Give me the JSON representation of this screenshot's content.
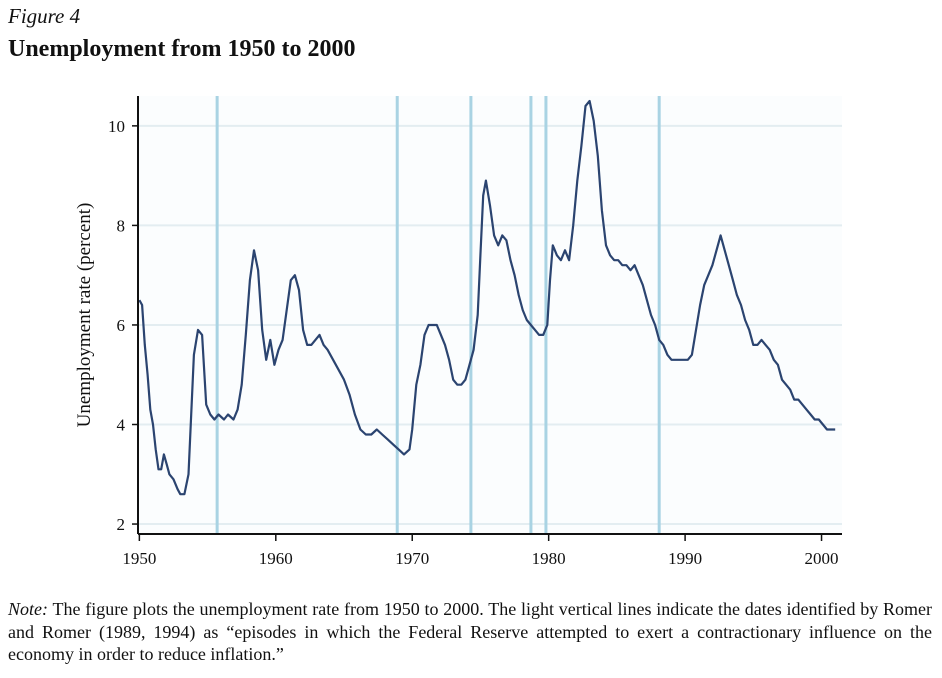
{
  "figure_label": "Figure 4",
  "figure_title": "Unemployment from 1950 to 2000",
  "note": {
    "label": "Note:",
    "text": " The figure plots the unemployment rate from 1950 to 2000. The light vertical lines indicate the dates identified by Romer and Romer (1989, 1994) as “episodes in which the Federal Reserve attempted to exert a contractionary influence on the economy in order to reduce inflation.”"
  },
  "colors": {
    "series": "#2b4470",
    "episode_line": "#a9d3e3",
    "grid": "#e3edf1",
    "plot_background": "#fbfdfe",
    "axis": "#111111"
  },
  "chart_data": {
    "type": "line",
    "title": "",
    "xlabel": "",
    "ylabel": "Unemployment rate (percent)",
    "xlim": [
      1949.9,
      2001.5
    ],
    "ylim": [
      1.8,
      10.6
    ],
    "x_ticks": [
      1950,
      1960,
      1970,
      1980,
      1990,
      2000
    ],
    "y_ticks": [
      2,
      4,
      6,
      8,
      10
    ],
    "grid": "horizontal",
    "episodes": [
      1955.7,
      1968.9,
      1974.3,
      1978.7,
      1979.8,
      1988.1
    ],
    "series": [
      {
        "x": [
          1950.0,
          1950.2,
          1950.4,
          1950.6,
          1950.8,
          1951.0,
          1951.2,
          1951.4,
          1951.6,
          1951.8,
          1952.0,
          1952.2,
          1952.5,
          1952.8,
          1953.0,
          1953.3,
          1953.6,
          1953.8,
          1954.0,
          1954.3,
          1954.6,
          1954.9,
          1955.2,
          1955.5,
          1955.8,
          1956.2,
          1956.5,
          1956.9,
          1957.2,
          1957.5,
          1957.8,
          1958.1,
          1958.4,
          1958.7,
          1959.0,
          1959.3,
          1959.6,
          1959.9,
          1960.2,
          1960.5,
          1960.8,
          1961.1,
          1961.4,
          1961.7,
          1962.0,
          1962.3,
          1962.6,
          1962.9,
          1963.2,
          1963.5,
          1963.8,
          1964.2,
          1964.6,
          1965.0,
          1965.4,
          1965.8,
          1966.2,
          1966.6,
          1967.0,
          1967.4,
          1967.8,
          1968.2,
          1968.6,
          1969.0,
          1969.4,
          1969.8,
          1970.0,
          1970.3,
          1970.6,
          1970.9,
          1971.2,
          1971.5,
          1971.8,
          1972.1,
          1972.4,
          1972.7,
          1973.0,
          1973.3,
          1973.6,
          1973.9,
          1974.2,
          1974.5,
          1974.8,
          1975.0,
          1975.2,
          1975.4,
          1975.7,
          1976.0,
          1976.3,
          1976.6,
          1976.9,
          1977.2,
          1977.5,
          1977.8,
          1978.1,
          1978.4,
          1978.7,
          1979.0,
          1979.3,
          1979.6,
          1979.9,
          1980.1,
          1980.3,
          1980.6,
          1980.9,
          1981.2,
          1981.5,
          1981.8,
          1982.1,
          1982.4,
          1982.7,
          1983.0,
          1983.3,
          1983.6,
          1983.9,
          1984.2,
          1984.5,
          1984.8,
          1985.1,
          1985.4,
          1985.7,
          1986.0,
          1986.3,
          1986.6,
          1986.9,
          1987.2,
          1987.5,
          1987.8,
          1988.1,
          1988.4,
          1988.7,
          1989.0,
          1989.3,
          1989.6,
          1989.9,
          1990.2,
          1990.5,
          1990.8,
          1991.1,
          1991.4,
          1991.7,
          1992.0,
          1992.3,
          1992.6,
          1992.9,
          1993.2,
          1993.5,
          1993.8,
          1994.1,
          1994.4,
          1994.7,
          1995.0,
          1995.3,
          1995.6,
          1995.9,
          1996.2,
          1996.5,
          1996.8,
          1997.1,
          1997.4,
          1997.7,
          1998.0,
          1998.3,
          1998.6,
          1998.9,
          1999.2,
          1999.5,
          1999.8,
          2000.1,
          2000.4,
          2000.7,
          2001.0
        ],
        "values": [
          6.5,
          6.4,
          5.6,
          5.0,
          4.3,
          4.0,
          3.5,
          3.1,
          3.1,
          3.4,
          3.2,
          3.0,
          2.9,
          2.7,
          2.6,
          2.6,
          3.0,
          4.2,
          5.4,
          5.9,
          5.8,
          4.4,
          4.2,
          4.1,
          4.2,
          4.1,
          4.2,
          4.1,
          4.3,
          4.8,
          5.8,
          6.9,
          7.5,
          7.1,
          5.9,
          5.3,
          5.7,
          5.2,
          5.5,
          5.7,
          6.3,
          6.9,
          7.0,
          6.7,
          5.9,
          5.6,
          5.6,
          5.7,
          5.8,
          5.6,
          5.5,
          5.3,
          5.1,
          4.9,
          4.6,
          4.2,
          3.9,
          3.8,
          3.8,
          3.9,
          3.8,
          3.7,
          3.6,
          3.5,
          3.4,
          3.5,
          3.9,
          4.8,
          5.2,
          5.8,
          6.0,
          6.0,
          6.0,
          5.8,
          5.6,
          5.3,
          4.9,
          4.8,
          4.8,
          4.9,
          5.2,
          5.5,
          6.2,
          7.4,
          8.6,
          8.9,
          8.4,
          7.8,
          7.6,
          7.8,
          7.7,
          7.3,
          7.0,
          6.6,
          6.3,
          6.1,
          6.0,
          5.9,
          5.8,
          5.8,
          6.0,
          6.9,
          7.6,
          7.4,
          7.3,
          7.5,
          7.3,
          8.0,
          8.9,
          9.6,
          10.4,
          10.5,
          10.1,
          9.4,
          8.3,
          7.6,
          7.4,
          7.3,
          7.3,
          7.2,
          7.2,
          7.1,
          7.2,
          7.0,
          6.8,
          6.5,
          6.2,
          6.0,
          5.7,
          5.6,
          5.4,
          5.3,
          5.3,
          5.3,
          5.3,
          5.3,
          5.4,
          5.9,
          6.4,
          6.8,
          7.0,
          7.2,
          7.5,
          7.8,
          7.5,
          7.2,
          6.9,
          6.6,
          6.4,
          6.1,
          5.9,
          5.6,
          5.6,
          5.7,
          5.6,
          5.5,
          5.3,
          5.2,
          4.9,
          4.8,
          4.7,
          4.5,
          4.5,
          4.4,
          4.3,
          4.2,
          4.1,
          4.1,
          4.0,
          3.9,
          3.9,
          3.9
        ]
      }
    ]
  }
}
